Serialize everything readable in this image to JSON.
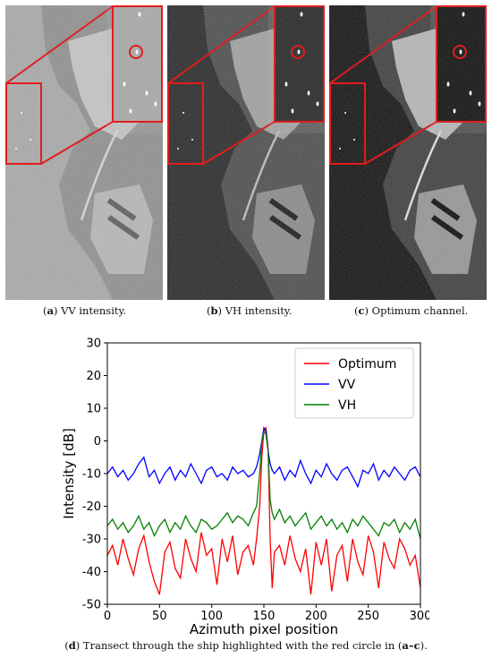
{
  "panels": [
    {
      "letter": "a",
      "text": "VV intensity.",
      "style": "vv"
    },
    {
      "letter": "b",
      "text": "VH intensity.",
      "style": "vh"
    },
    {
      "letter": "c",
      "text": "Optimum channel.",
      "style": "opt"
    }
  ],
  "highlight_color": "#e11d1d",
  "bottom_caption": {
    "letter": "d",
    "pre": "Transect through the ship highlighted with the red circle in (",
    "range": "a–c",
    "post": ")."
  },
  "chart_data": {
    "type": "line",
    "xlabel": "Azimuth pixel position",
    "ylabel": "Intensity [dB]",
    "xlim": [
      0,
      300
    ],
    "ylim": [
      -50,
      30
    ],
    "xticks": [
      0,
      50,
      100,
      150,
      200,
      250,
      300
    ],
    "yticks": [
      -50,
      -40,
      -30,
      -20,
      -10,
      0,
      10,
      20,
      30
    ],
    "legend_position": "top-right",
    "series": [
      {
        "name": "Optimum",
        "color": "#ff0000",
        "x": [
          0,
          5,
          10,
          15,
          20,
          25,
          30,
          35,
          40,
          45,
          50,
          55,
          60,
          65,
          70,
          75,
          80,
          85,
          90,
          95,
          100,
          105,
          110,
          115,
          120,
          125,
          130,
          135,
          140,
          143,
          146,
          148,
          150,
          152,
          154,
          156,
          158,
          160,
          165,
          170,
          175,
          180,
          185,
          190,
          195,
          200,
          205,
          210,
          215,
          220,
          225,
          230,
          235,
          240,
          245,
          250,
          255,
          260,
          265,
          270,
          275,
          280,
          285,
          290,
          295,
          300
        ],
        "y": [
          -35,
          -32,
          -38,
          -30,
          -36,
          -41,
          -33,
          -29,
          -37,
          -43,
          -47,
          -34,
          -31,
          -39,
          -42,
          -30,
          -36,
          -40,
          -28,
          -35,
          -33,
          -44,
          -30,
          -37,
          -29,
          -41,
          -34,
          -32,
          -38,
          -30,
          -20,
          -5,
          3,
          4,
          -2,
          -30,
          -45,
          -34,
          -32,
          -38,
          -29,
          -36,
          -40,
          -33,
          -47,
          -31,
          -38,
          -30,
          -46,
          -35,
          -32,
          -43,
          -30,
          -37,
          -41,
          -29,
          -34,
          -45,
          -31,
          -36,
          -39,
          -30,
          -33,
          -38,
          -35,
          -45
        ]
      },
      {
        "name": "VV",
        "color": "#0000ff",
        "x": [
          0,
          5,
          10,
          15,
          20,
          25,
          30,
          35,
          40,
          45,
          50,
          55,
          60,
          65,
          70,
          75,
          80,
          85,
          90,
          95,
          100,
          105,
          110,
          115,
          120,
          125,
          130,
          135,
          140,
          143,
          146,
          148,
          150,
          152,
          154,
          156,
          158,
          160,
          165,
          170,
          175,
          180,
          185,
          190,
          195,
          200,
          205,
          210,
          215,
          220,
          225,
          230,
          235,
          240,
          245,
          250,
          255,
          260,
          265,
          270,
          275,
          280,
          285,
          290,
          295,
          300
        ],
        "y": [
          -10,
          -8,
          -11,
          -9,
          -12,
          -10,
          -7,
          -5,
          -11,
          -9,
          -13,
          -10,
          -8,
          -12,
          -9,
          -11,
          -7,
          -10,
          -13,
          -9,
          -8,
          -11,
          -10,
          -12,
          -8,
          -10,
          -9,
          -11,
          -10,
          -8,
          -4,
          0,
          4,
          3,
          -3,
          -7,
          -9,
          -10,
          -8,
          -12,
          -9,
          -11,
          -6,
          -10,
          -13,
          -9,
          -11,
          -7,
          -10,
          -12,
          -9,
          -8,
          -11,
          -14,
          -9,
          -10,
          -7,
          -12,
          -9,
          -11,
          -8,
          -10,
          -12,
          -9,
          -8,
          -11
        ]
      },
      {
        "name": "VH",
        "color": "#008000",
        "x": [
          0,
          5,
          10,
          15,
          20,
          25,
          30,
          35,
          40,
          45,
          50,
          55,
          60,
          65,
          70,
          75,
          80,
          85,
          90,
          95,
          100,
          105,
          110,
          115,
          120,
          125,
          130,
          135,
          140,
          143,
          146,
          148,
          150,
          152,
          154,
          156,
          158,
          160,
          165,
          170,
          175,
          180,
          185,
          190,
          195,
          200,
          205,
          210,
          215,
          220,
          225,
          230,
          235,
          240,
          245,
          250,
          255,
          260,
          265,
          270,
          275,
          280,
          285,
          290,
          295,
          300
        ],
        "y": [
          -26,
          -24,
          -27,
          -25,
          -28,
          -26,
          -23,
          -27,
          -25,
          -29,
          -26,
          -24,
          -28,
          -25,
          -27,
          -23,
          -26,
          -28,
          -24,
          -25,
          -27,
          -26,
          -24,
          -22,
          -25,
          -23,
          -24,
          -26,
          -22,
          -20,
          -10,
          0,
          3,
          2,
          -3,
          -18,
          -22,
          -24,
          -21,
          -25,
          -23,
          -26,
          -24,
          -22,
          -27,
          -25,
          -23,
          -26,
          -24,
          -27,
          -25,
          -28,
          -24,
          -26,
          -23,
          -25,
          -27,
          -29,
          -25,
          -26,
          -24,
          -28,
          -25,
          -27,
          -24,
          -30
        ]
      }
    ]
  }
}
